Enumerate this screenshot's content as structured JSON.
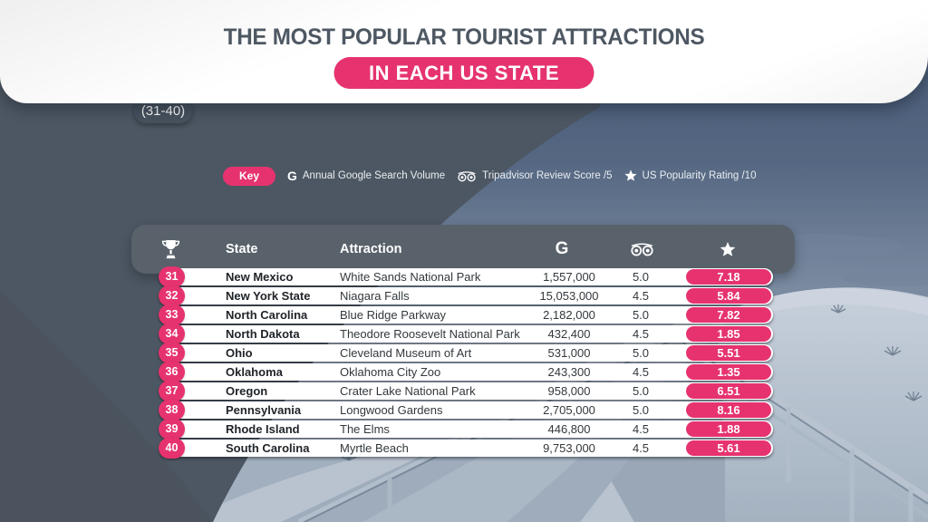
{
  "colors": {
    "accent_pink": "#e6336f",
    "header_slate": "#59626b",
    "overlay_dark": "#4d5763",
    "title_text": "#4e5863",
    "range_pill_bg": "#47525e"
  },
  "header": {
    "title": "THE MOST POPULAR TOURIST ATTRACTIONS",
    "subtitle": "IN EACH US STATE",
    "range_label": "(31-40)"
  },
  "key": {
    "label": "Key",
    "items": [
      {
        "icon": "google-g",
        "label": "Annual Google Search Volume"
      },
      {
        "icon": "tripadvisor-binoculars",
        "label": "Tripadvisor Review Score /5"
      },
      {
        "icon": "star",
        "label": "US Popularity Rating /10"
      }
    ]
  },
  "icons": {
    "google_glyph": "G"
  },
  "table": {
    "columns": {
      "state": "State",
      "attraction": "Attraction"
    },
    "rows": [
      {
        "rank": "31",
        "state": "New Mexico",
        "attraction": "White Sands National Park",
        "search_volume": "1,557,000",
        "review_score": "5.0",
        "rating": "7.18"
      },
      {
        "rank": "32",
        "state": "New York State",
        "attraction": "Niagara Falls",
        "search_volume": "15,053,000",
        "review_score": "4.5",
        "rating": "5.84"
      },
      {
        "rank": "33",
        "state": "North Carolina",
        "attraction": "Blue Ridge Parkway",
        "search_volume": "2,182,000",
        "review_score": "5.0",
        "rating": "7.82"
      },
      {
        "rank": "34",
        "state": "North Dakota",
        "attraction": "Theodore Roosevelt National Park",
        "search_volume": "432,400",
        "review_score": "4.5",
        "rating": "1.85"
      },
      {
        "rank": "35",
        "state": "Ohio",
        "attraction": "Cleveland Museum of Art",
        "search_volume": "531,000",
        "review_score": "5.0",
        "rating": "5.51"
      },
      {
        "rank": "36",
        "state": "Oklahoma",
        "attraction": "Oklahoma City Zoo",
        "search_volume": "243,300",
        "review_score": "4.5",
        "rating": "1.35"
      },
      {
        "rank": "37",
        "state": "Oregon",
        "attraction": "Crater Lake National Park",
        "search_volume": "958,000",
        "review_score": "5.0",
        "rating": "6.51"
      },
      {
        "rank": "38",
        "state": "Pennsylvania",
        "attraction": "Longwood Gardens",
        "search_volume": "2,705,000",
        "review_score": "5.0",
        "rating": "8.16"
      },
      {
        "rank": "39",
        "state": "Rhode Island",
        "attraction": "The Elms",
        "search_volume": "446,800",
        "review_score": "4.5",
        "rating": "1.88"
      },
      {
        "rank": "40",
        "state": "South Carolina",
        "attraction": "Myrtle Beach",
        "search_volume": "9,753,000",
        "review_score": "4.5",
        "rating": "5.61"
      }
    ]
  },
  "chart_data": {
    "type": "table",
    "title": "THE MOST POPULAR TOURIST ATTRACTIONS IN EACH US STATE (31-40)",
    "columns": [
      "Rank",
      "State",
      "Attraction",
      "Annual Google Search Volume",
      "Tripadvisor Review Score /5",
      "US Popularity Rating /10"
    ],
    "rows": [
      [
        31,
        "New Mexico",
        "White Sands National Park",
        1557000,
        5.0,
        7.18
      ],
      [
        32,
        "New York State",
        "Niagara Falls",
        15053000,
        4.5,
        5.84
      ],
      [
        33,
        "North Carolina",
        "Blue Ridge Parkway",
        2182000,
        5.0,
        7.82
      ],
      [
        34,
        "North Dakota",
        "Theodore Roosevelt National Park",
        432400,
        4.5,
        1.85
      ],
      [
        35,
        "Ohio",
        "Cleveland Museum of Art",
        531000,
        5.0,
        5.51
      ],
      [
        36,
        "Oklahoma",
        "Oklahoma City Zoo",
        243300,
        4.5,
        1.35
      ],
      [
        37,
        "Oregon",
        "Crater Lake National Park",
        958000,
        5.0,
        6.51
      ],
      [
        38,
        "Pennsylvania",
        "Longwood Gardens",
        2705000,
        5.0,
        8.16
      ],
      [
        39,
        "Rhode Island",
        "The Elms",
        446800,
        4.5,
        1.88
      ],
      [
        40,
        "South Carolina",
        "Myrtle Beach",
        9753000,
        4.5,
        5.61
      ]
    ]
  }
}
